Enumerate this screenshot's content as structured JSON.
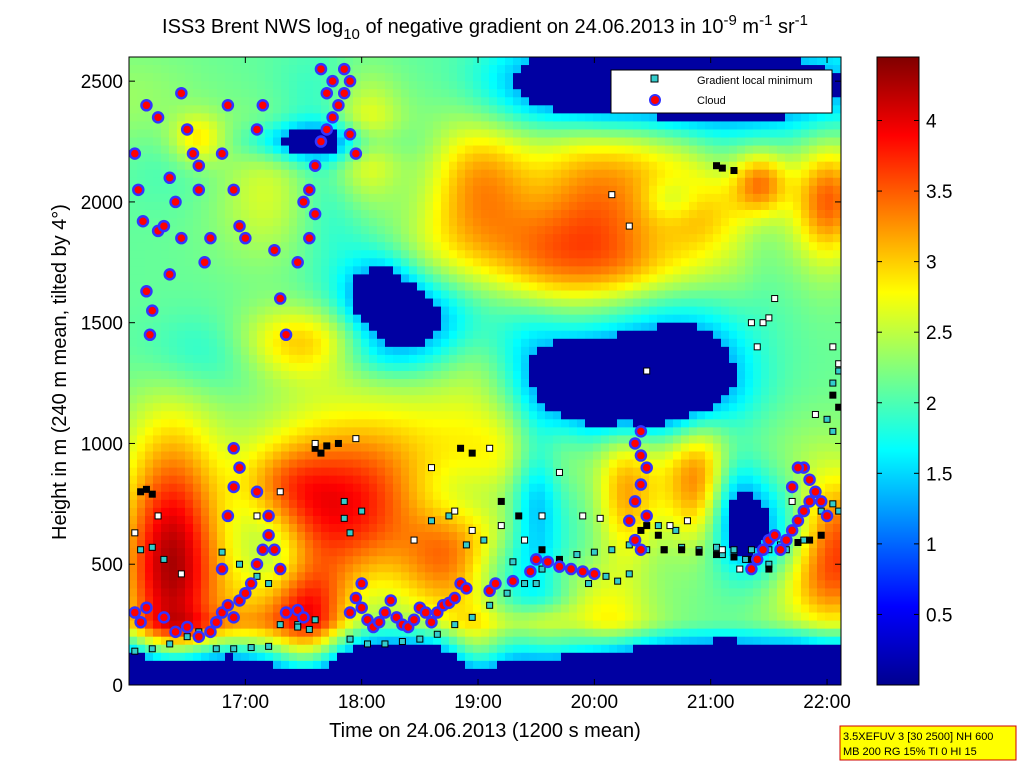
{
  "chart_data": {
    "type": "heatmap",
    "title": {
      "prefix": "ISS3 Brent NWS log",
      "log_base": "10",
      "middle": " of negative gradient on 24.06.2013 in 10",
      "exp1": "-9",
      "mid2": " m",
      "exp2": "-1",
      "mid3": " sr",
      "exp3": "-1"
    },
    "xlabel": "Time on 24.06.2013 (1200 s mean)",
    "ylabel": "Height in m (240 m mean, tilted by 4°)",
    "xlim_hours": [
      16.0,
      22.12
    ],
    "ylim": [
      0,
      2600
    ],
    "x_ticks": [
      {
        "value": 17.0,
        "label": "17:00"
      },
      {
        "value": 18.0,
        "label": "18:00"
      },
      {
        "value": 19.0,
        "label": "19:00"
      },
      {
        "value": 20.0,
        "label": "20:00"
      },
      {
        "value": 21.0,
        "label": "21:00"
      },
      {
        "value": 22.0,
        "label": "22:00"
      }
    ],
    "y_ticks": [
      {
        "value": 0,
        "label": "0"
      },
      {
        "value": 500,
        "label": "500"
      },
      {
        "value": 1000,
        "label": "1000"
      },
      {
        "value": 1500,
        "label": "1500"
      },
      {
        "value": 2000,
        "label": "2000"
      },
      {
        "value": 2500,
        "label": "2500"
      }
    ],
    "colorbar": {
      "colormap": "jet",
      "range": [
        0,
        4.45
      ],
      "ticks": [
        {
          "value": 0.5,
          "label": "0.5"
        },
        {
          "value": 1.0,
          "label": "1"
        },
        {
          "value": 1.5,
          "label": "1.5"
        },
        {
          "value": 2.0,
          "label": "2"
        },
        {
          "value": 2.5,
          "label": "2.5"
        },
        {
          "value": 3.0,
          "label": "3"
        },
        {
          "value": 3.5,
          "label": "3.5"
        },
        {
          "value": 4.0,
          "label": "4"
        }
      ]
    },
    "legend": {
      "placement": "top-right",
      "entries": [
        {
          "label": "Gradient local minimum",
          "marker": "square",
          "color": "#33cccc"
        },
        {
          "label": "Cloud",
          "marker": "circle",
          "color": "#ff0000",
          "edge": "#3333ff"
        }
      ]
    },
    "gradient_minimum_points": [
      [
        16.05,
        140
      ],
      [
        16.2,
        150
      ],
      [
        16.35,
        170
      ],
      [
        16.5,
        200
      ],
      [
        16.6,
        220
      ],
      [
        16.75,
        150
      ],
      [
        16.9,
        150
      ],
      [
        17.05,
        155
      ],
      [
        17.2,
        160
      ],
      [
        17.3,
        250
      ],
      [
        17.45,
        250
      ],
      [
        17.6,
        270
      ],
      [
        17.9,
        190
      ],
      [
        18.05,
        170
      ],
      [
        18.2,
        170
      ],
      [
        18.35,
        180
      ],
      [
        18.5,
        190
      ],
      [
        18.65,
        210
      ],
      [
        18.8,
        250
      ],
      [
        18.95,
        280
      ],
      [
        19.1,
        330
      ],
      [
        19.25,
        380
      ],
      [
        19.4,
        420
      ],
      [
        19.55,
        480
      ],
      [
        19.7,
        510
      ],
      [
        19.85,
        540
      ],
      [
        20.0,
        550
      ],
      [
        20.15,
        560
      ],
      [
        20.3,
        580
      ],
      [
        20.45,
        560
      ],
      [
        20.6,
        560
      ],
      [
        20.75,
        570
      ],
      [
        20.9,
        560
      ],
      [
        21.05,
        570
      ],
      [
        21.2,
        560
      ],
      [
        21.35,
        560
      ],
      [
        21.5,
        500
      ],
      [
        21.65,
        560
      ],
      [
        21.8,
        600
      ],
      [
        21.95,
        720
      ],
      [
        22.05,
        750
      ],
      [
        22.1,
        720
      ],
      [
        16.1,
        560
      ],
      [
        16.2,
        570
      ],
      [
        16.3,
        520
      ],
      [
        17.45,
        240
      ],
      [
        17.55,
        230
      ],
      [
        17.9,
        630
      ],
      [
        18.0,
        720
      ],
      [
        17.85,
        690
      ],
      [
        17.85,
        760
      ],
      [
        16.8,
        550
      ],
      [
        16.95,
        500
      ],
      [
        17.1,
        450
      ],
      [
        17.2,
        420
      ],
      [
        18.6,
        680
      ],
      [
        18.75,
        700
      ],
      [
        18.9,
        580
      ],
      [
        19.05,
        600
      ],
      [
        19.3,
        510
      ],
      [
        19.5,
        420
      ],
      [
        19.95,
        420
      ],
      [
        20.1,
        450
      ],
      [
        20.2,
        430
      ],
      [
        20.3,
        460
      ],
      [
        20.55,
        660
      ],
      [
        20.7,
        640
      ],
      [
        21.1,
        540
      ],
      [
        21.3,
        520
      ],
      [
        21.5,
        560
      ],
      [
        21.6,
        580
      ],
      [
        22.05,
        1050
      ],
      [
        22.0,
        1100
      ],
      [
        22.1,
        1300
      ],
      [
        22.05,
        1250
      ]
    ],
    "black_gradient_points": [
      [
        16.1,
        800
      ],
      [
        16.15,
        810
      ],
      [
        16.2,
        790
      ],
      [
        17.6,
        980
      ],
      [
        17.7,
        990
      ],
      [
        17.8,
        1000
      ],
      [
        17.65,
        960
      ],
      [
        18.85,
        980
      ],
      [
        18.95,
        960
      ],
      [
        19.2,
        760
      ],
      [
        19.35,
        700
      ],
      [
        19.55,
        560
      ],
      [
        19.7,
        520
      ],
      [
        20.4,
        640
      ],
      [
        20.45,
        660
      ],
      [
        20.55,
        620
      ],
      [
        21.05,
        2150
      ],
      [
        21.1,
        2140
      ],
      [
        21.2,
        2130
      ],
      [
        21.75,
        590
      ],
      [
        21.85,
        600
      ],
      [
        21.95,
        620
      ],
      [
        22.05,
        1200
      ],
      [
        22.1,
        1150
      ],
      [
        20.6,
        560
      ],
      [
        20.75,
        560
      ],
      [
        20.9,
        550
      ],
      [
        21.05,
        540
      ],
      [
        21.2,
        530
      ],
      [
        21.35,
        520
      ],
      [
        21.5,
        480
      ]
    ],
    "white_gradient_points": [
      [
        16.05,
        630
      ],
      [
        16.25,
        700
      ],
      [
        16.45,
        460
      ],
      [
        17.1,
        700
      ],
      [
        17.3,
        800
      ],
      [
        17.6,
        1000
      ],
      [
        17.95,
        1020
      ],
      [
        18.45,
        600
      ],
      [
        18.6,
        900
      ],
      [
        18.8,
        720
      ],
      [
        18.95,
        640
      ],
      [
        19.1,
        980
      ],
      [
        19.2,
        660
      ],
      [
        19.4,
        600
      ],
      [
        19.55,
        700
      ],
      [
        19.7,
        880
      ],
      [
        19.9,
        700
      ],
      [
        20.05,
        690
      ],
      [
        20.15,
        2030
      ],
      [
        20.3,
        1900
      ],
      [
        20.45,
        1300
      ],
      [
        20.65,
        660
      ],
      [
        20.8,
        680
      ],
      [
        21.1,
        560
      ],
      [
        21.25,
        480
      ],
      [
        21.35,
        1500
      ],
      [
        21.45,
        1500
      ],
      [
        21.55,
        1600
      ],
      [
        21.7,
        760
      ],
      [
        21.9,
        1120
      ],
      [
        22.05,
        1400
      ],
      [
        22.1,
        1330
      ],
      [
        21.4,
        1400
      ],
      [
        21.5,
        1520
      ]
    ],
    "cloud_points": [
      [
        16.05,
        2200
      ],
      [
        16.08,
        2050
      ],
      [
        16.12,
        1920
      ],
      [
        16.15,
        1630
      ],
      [
        16.18,
        1450
      ],
      [
        16.2,
        1550
      ],
      [
        16.25,
        1880
      ],
      [
        16.3,
        1900
      ],
      [
        16.35,
        2100
      ],
      [
        16.4,
        2000
      ],
      [
        16.45,
        1850
      ],
      [
        16.5,
        2300
      ],
      [
        16.55,
        2200
      ],
      [
        16.6,
        2050
      ],
      [
        16.65,
        1750
      ],
      [
        16.7,
        1850
      ],
      [
        16.8,
        2200
      ],
      [
        16.85,
        2400
      ],
      [
        16.9,
        2050
      ],
      [
        16.95,
        1900
      ],
      [
        17.0,
        1850
      ],
      [
        16.15,
        2400
      ],
      [
        16.25,
        2350
      ],
      [
        16.45,
        2450
      ],
      [
        16.6,
        2150
      ],
      [
        16.35,
        1700
      ],
      [
        17.1,
        2300
      ],
      [
        17.15,
        2400
      ],
      [
        17.25,
        1800
      ],
      [
        17.3,
        1600
      ],
      [
        17.35,
        1450
      ],
      [
        17.45,
        1750
      ],
      [
        17.5,
        2000
      ],
      [
        17.55,
        2050
      ],
      [
        17.6,
        2150
      ],
      [
        17.65,
        2250
      ],
      [
        17.7,
        2300
      ],
      [
        17.75,
        2350
      ],
      [
        17.8,
        2400
      ],
      [
        17.85,
        2450
      ],
      [
        17.9,
        2280
      ],
      [
        17.95,
        2200
      ],
      [
        17.85,
        2550
      ],
      [
        17.9,
        2500
      ],
      [
        17.6,
        1950
      ],
      [
        17.55,
        1850
      ],
      [
        17.7,
        2450
      ],
      [
        17.75,
        2500
      ],
      [
        17.65,
        2550
      ],
      [
        16.05,
        300
      ],
      [
        16.1,
        260
      ],
      [
        16.15,
        320
      ],
      [
        16.3,
        280
      ],
      [
        16.4,
        220
      ],
      [
        16.5,
        240
      ],
      [
        16.6,
        200
      ],
      [
        16.7,
        220
      ],
      [
        16.75,
        260
      ],
      [
        16.8,
        300
      ],
      [
        16.85,
        330
      ],
      [
        16.9,
        280
      ],
      [
        16.95,
        350
      ],
      [
        17.0,
        380
      ],
      [
        17.05,
        420
      ],
      [
        17.1,
        500
      ],
      [
        17.15,
        560
      ],
      [
        17.2,
        620
      ],
      [
        17.25,
        560
      ],
      [
        17.3,
        480
      ],
      [
        16.8,
        480
      ],
      [
        16.85,
        700
      ],
      [
        16.9,
        820
      ],
      [
        16.95,
        900
      ],
      [
        16.9,
        980
      ],
      [
        17.1,
        800
      ],
      [
        17.2,
        700
      ],
      [
        17.35,
        300
      ],
      [
        17.45,
        310
      ],
      [
        17.5,
        280
      ],
      [
        17.9,
        300
      ],
      [
        17.95,
        360
      ],
      [
        18.0,
        320
      ],
      [
        18.05,
        270
      ],
      [
        18.1,
        240
      ],
      [
        18.15,
        260
      ],
      [
        18.2,
        300
      ],
      [
        18.25,
        350
      ],
      [
        18.3,
        280
      ],
      [
        18.35,
        250
      ],
      [
        18.4,
        240
      ],
      [
        18.45,
        270
      ],
      [
        18.5,
        320
      ],
      [
        18.55,
        300
      ],
      [
        18.6,
        260
      ],
      [
        18.65,
        300
      ],
      [
        18.7,
        330
      ],
      [
        18.75,
        340
      ],
      [
        18.8,
        360
      ],
      [
        18.85,
        420
      ],
      [
        18.9,
        400
      ],
      [
        18.0,
        420
      ],
      [
        19.1,
        390
      ],
      [
        19.15,
        420
      ],
      [
        19.3,
        430
      ],
      [
        19.45,
        470
      ],
      [
        19.5,
        520
      ],
      [
        19.6,
        510
      ],
      [
        19.7,
        490
      ],
      [
        19.8,
        480
      ],
      [
        19.9,
        470
      ],
      [
        20.0,
        460
      ],
      [
        20.35,
        1000
      ],
      [
        20.4,
        950
      ],
      [
        20.45,
        900
      ],
      [
        20.4,
        830
      ],
      [
        20.35,
        760
      ],
      [
        20.3,
        680
      ],
      [
        20.35,
        600
      ],
      [
        20.4,
        560
      ],
      [
        20.45,
        700
      ],
      [
        20.4,
        1050
      ],
      [
        21.35,
        480
      ],
      [
        21.4,
        520
      ],
      [
        21.45,
        560
      ],
      [
        21.5,
        600
      ],
      [
        21.55,
        620
      ],
      [
        21.6,
        560
      ],
      [
        21.65,
        600
      ],
      [
        21.7,
        640
      ],
      [
        21.75,
        680
      ],
      [
        21.8,
        720
      ],
      [
        21.85,
        760
      ],
      [
        21.9,
        800
      ],
      [
        21.95,
        760
      ],
      [
        22.0,
        700
      ],
      [
        21.8,
        900
      ],
      [
        21.85,
        850
      ],
      [
        21.75,
        900
      ],
      [
        21.7,
        820
      ]
    ],
    "info_box": [
      "3.5XEFUV 3 [30 2500] NH 600",
      "MB 200 RG 15% TI 0 HI 15"
    ]
  }
}
